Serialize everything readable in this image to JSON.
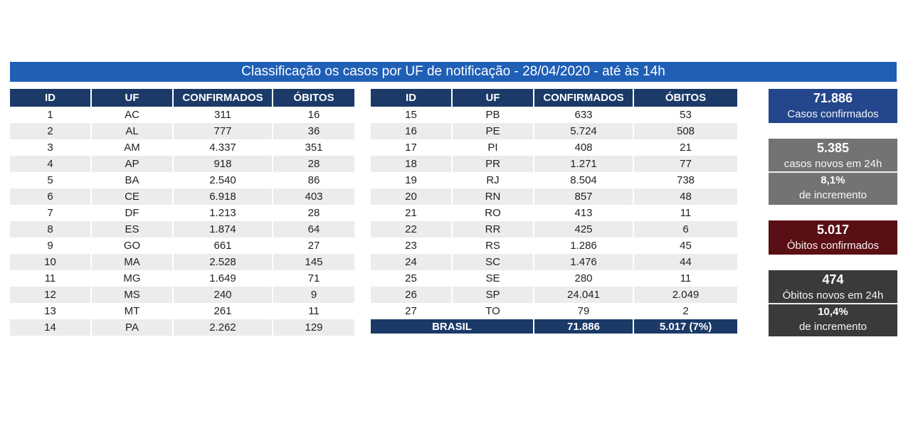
{
  "title": "Classificação os casos por UF de notificação - 28/04/2020 - até às 14h",
  "headers": [
    "ID",
    "UF",
    "CONFIRMADOS",
    "ÓBITOS"
  ],
  "left_rows": [
    [
      "1",
      "AC",
      "311",
      "16"
    ],
    [
      "2",
      "AL",
      "777",
      "36"
    ],
    [
      "3",
      "AM",
      "4.337",
      "351"
    ],
    [
      "4",
      "AP",
      "918",
      "28"
    ],
    [
      "5",
      "BA",
      "2.540",
      "86"
    ],
    [
      "6",
      "CE",
      "6.918",
      "403"
    ],
    [
      "7",
      "DF",
      "1.213",
      "28"
    ],
    [
      "8",
      "ES",
      "1.874",
      "64"
    ],
    [
      "9",
      "GO",
      "661",
      "27"
    ],
    [
      "10",
      "MA",
      "2.528",
      "145"
    ],
    [
      "11",
      "MG",
      "1.649",
      "71"
    ],
    [
      "12",
      "MS",
      "240",
      "9"
    ],
    [
      "13",
      "MT",
      "261",
      "11"
    ],
    [
      "14",
      "PA",
      "2.262",
      "129"
    ]
  ],
  "right_rows": [
    [
      "15",
      "PB",
      "633",
      "53"
    ],
    [
      "16",
      "PE",
      "5.724",
      "508"
    ],
    [
      "17",
      "PI",
      "408",
      "21"
    ],
    [
      "18",
      "PR",
      "1.271",
      "77"
    ],
    [
      "19",
      "RJ",
      "8.504",
      "738"
    ],
    [
      "20",
      "RN",
      "857",
      "48"
    ],
    [
      "21",
      "RO",
      "413",
      "11"
    ],
    [
      "22",
      "RR",
      "425",
      "6"
    ],
    [
      "23",
      "RS",
      "1.286",
      "45"
    ],
    [
      "24",
      "SC",
      "1.476",
      "44"
    ],
    [
      "25",
      "SE",
      "280",
      "11"
    ],
    [
      "26",
      "SP",
      "24.041",
      "2.049"
    ],
    [
      "27",
      "TO",
      "79",
      "2"
    ]
  ],
  "total": {
    "label": "BRASIL",
    "confirmados": "71.886",
    "obitos": "5.017 (7%)"
  },
  "cards": {
    "total": {
      "value": "71.886",
      "label": "Casos confirmados"
    },
    "new": {
      "value": "5.385",
      "label": "casos novos em 24h",
      "pct": "8,1%",
      "pct_label": "de incremento"
    },
    "deaths": {
      "value": "5.017",
      "label": "Óbitos confirmados"
    },
    "new_deaths": {
      "value": "474",
      "label": "Óbitos novos em 24h",
      "pct": "10,4%",
      "pct_label": "de incremento"
    }
  },
  "colors": {
    "banner": "#1f5fb6",
    "header": "#1b3a67",
    "card_total": "#24468c",
    "card_new": "#737373",
    "card_deaths": "#5a0f14",
    "card_new_deaths": "#3a3a3a"
  }
}
